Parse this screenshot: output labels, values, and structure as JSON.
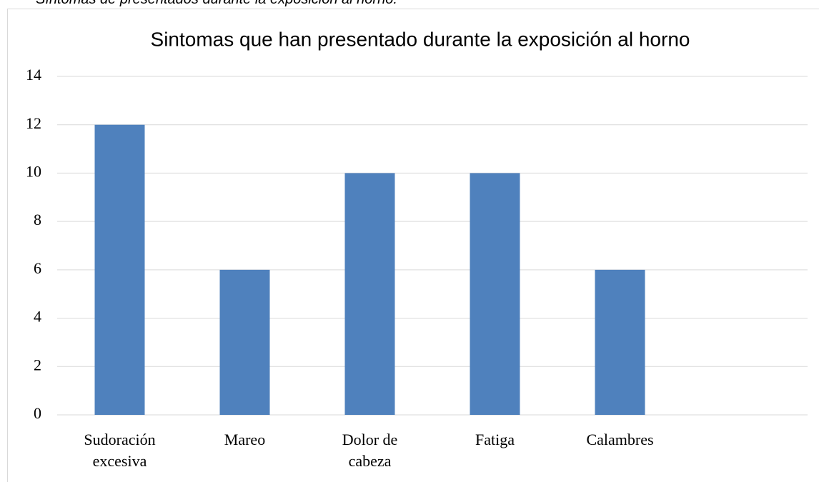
{
  "caption": "Síntomas de presentados durante la exposición al horno.",
  "chart_data": {
    "type": "bar",
    "title": "Sintomas que han presentado durante la exposición al horno",
    "categories": [
      "Sudoración excesiva",
      "Mareo",
      "Dolor de cabeza",
      "Fatiga",
      "Calambres",
      null
    ],
    "values": [
      12,
      6,
      10,
      10,
      6,
      null
    ],
    "color": "#4f81bd",
    "ylim": [
      0,
      14
    ],
    "yticks": [
      0,
      2,
      4,
      6,
      8,
      10,
      12,
      14
    ],
    "grid": true
  }
}
